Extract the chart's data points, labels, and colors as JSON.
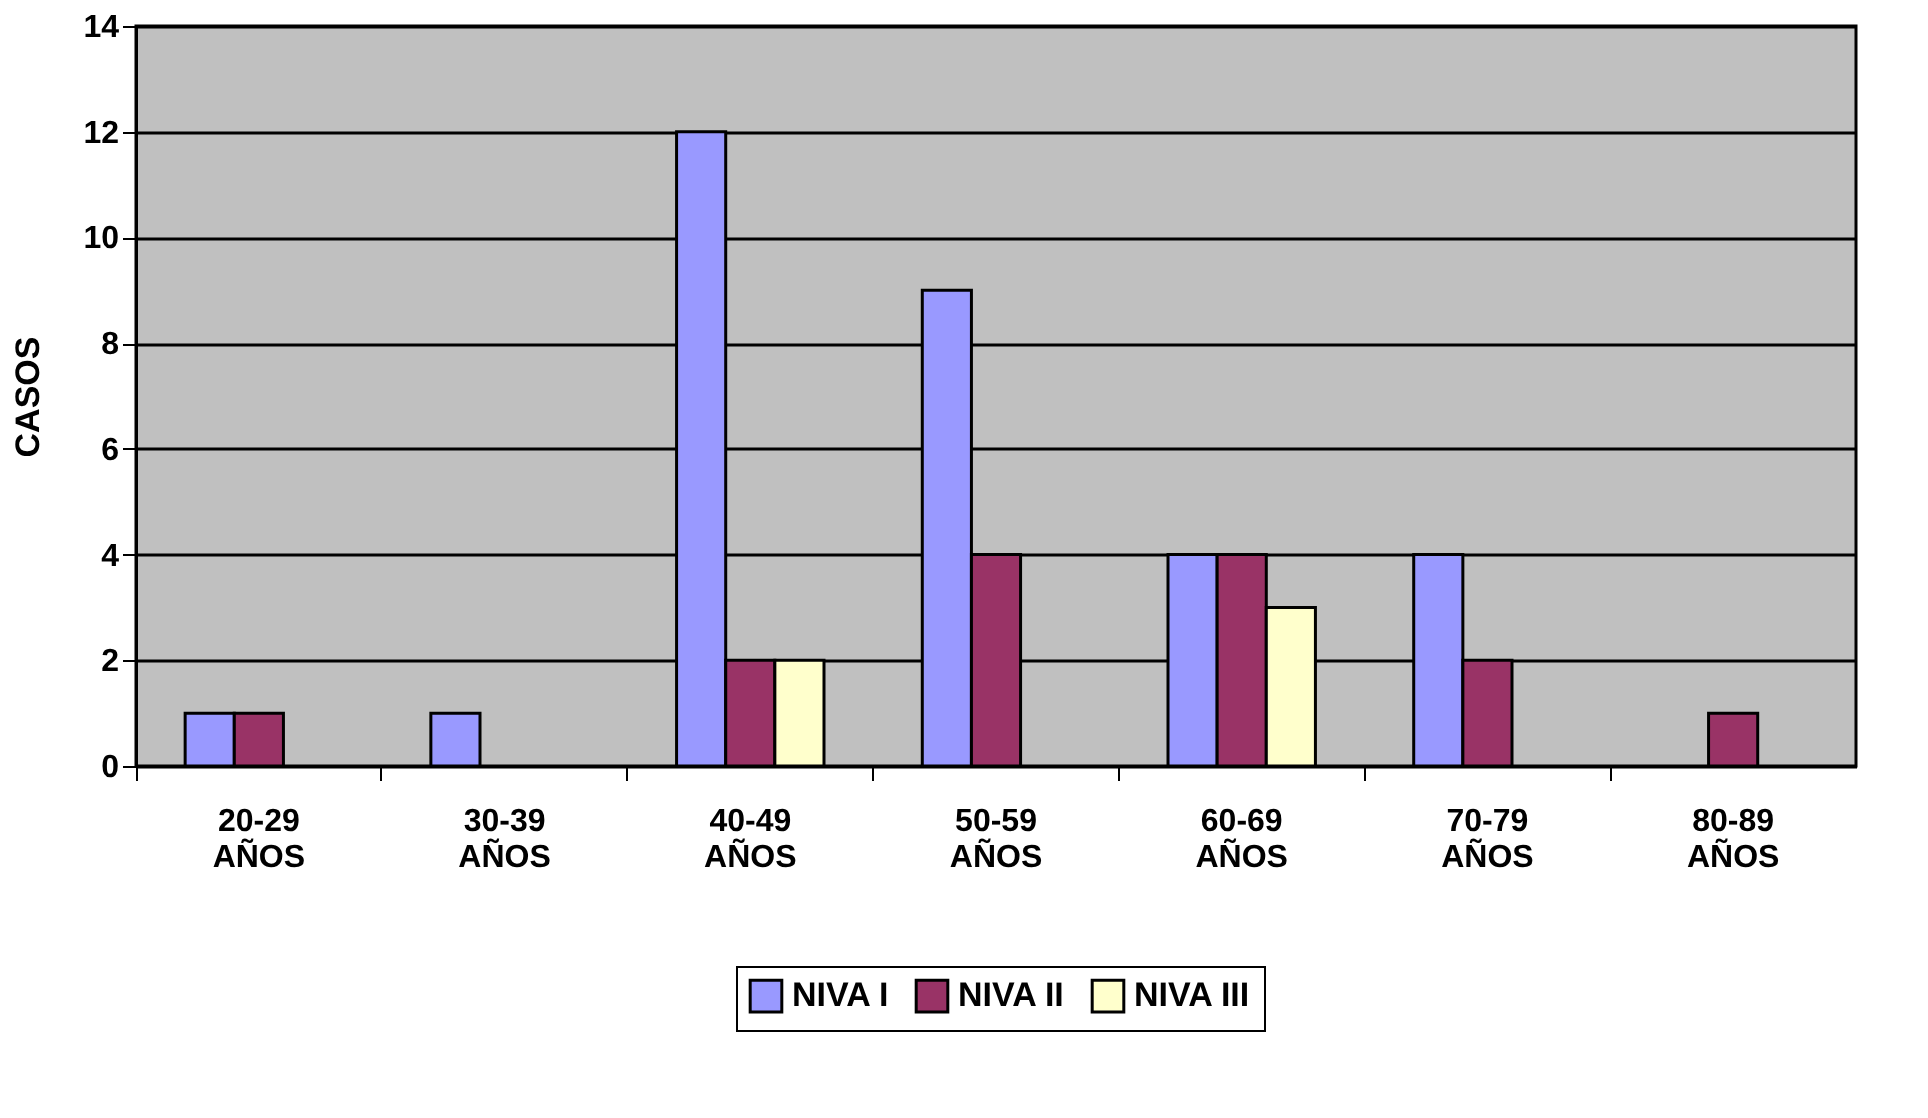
{
  "chart_data": {
    "type": "bar",
    "ylabel": "CASOS",
    "categories": [
      "20-29 AÑOS",
      "30-39 AÑOS",
      "40-49 AÑOS",
      "50-59 AÑOS",
      "60-69 AÑOS",
      "70-79 AÑOS",
      "80-89 AÑOS"
    ],
    "series": [
      {
        "name": "NIVA I",
        "color": "#9999ff",
        "values": [
          1,
          1,
          12,
          9,
          4,
          4,
          null
        ]
      },
      {
        "name": "NIVA II",
        "color": "#993366",
        "values": [
          1,
          null,
          2,
          4,
          4,
          2,
          1
        ]
      },
      {
        "name": "NIVA III",
        "color": "#ffffcc",
        "values": [
          null,
          null,
          2,
          null,
          3,
          null,
          null
        ]
      }
    ],
    "ylim": [
      0,
      14
    ],
    "yticks": [
      0,
      2,
      4,
      6,
      8,
      10,
      12,
      14
    ],
    "grid": "y",
    "legend": "bottom"
  }
}
